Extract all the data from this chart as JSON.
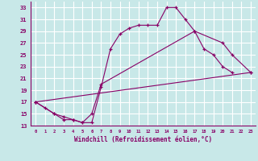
{
  "xlabel": "Windchill (Refroidissement éolien,°C)",
  "xlim": [
    -0.5,
    23.5
  ],
  "ylim": [
    13,
    34
  ],
  "xticks": [
    0,
    1,
    2,
    3,
    4,
    5,
    6,
    7,
    8,
    9,
    10,
    11,
    12,
    13,
    14,
    15,
    16,
    17,
    18,
    19,
    20,
    21,
    22,
    23
  ],
  "yticks": [
    13,
    15,
    17,
    19,
    21,
    23,
    25,
    27,
    29,
    31,
    33
  ],
  "bg_color": "#c8e8e8",
  "grid_color": "#ffffff",
  "line_color": "#880066",
  "line1_x": [
    0,
    1,
    2,
    3,
    4,
    5,
    6,
    7,
    8,
    9,
    10,
    11,
    12,
    13,
    14,
    15,
    16,
    17,
    18,
    19,
    20,
    21
  ],
  "line1_y": [
    17,
    16,
    15,
    14.5,
    14,
    13.5,
    13.5,
    19.5,
    26,
    28.5,
    29.5,
    30,
    30,
    30,
    33,
    33,
    31,
    29,
    26,
    25,
    23,
    22
  ],
  "line2_x": [
    0,
    2,
    3,
    4,
    5,
    6,
    7,
    17,
    20,
    21,
    23
  ],
  "line2_y": [
    17,
    15,
    14,
    14,
    13.5,
    15,
    20,
    29,
    27,
    25,
    22
  ],
  "line3_x": [
    0,
    23
  ],
  "line3_y": [
    17,
    22
  ]
}
